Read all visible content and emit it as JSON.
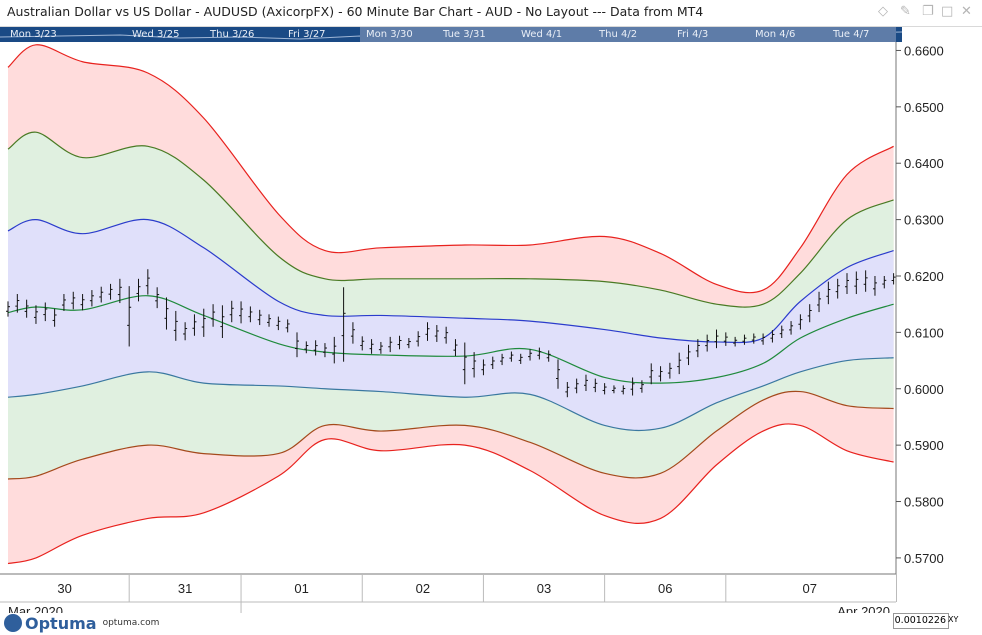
{
  "window": {
    "title": "Australian Dollar vs US Dollar - AUDUSD (AxicorpFX) - 60 Minute Bar Chart - AUD - No Layout --- Data from MT4",
    "icons": [
      "diamond-icon",
      "pin-icon",
      "restore-icon",
      "maximize-icon",
      "close-icon"
    ]
  },
  "navigator": {
    "labels": [
      "Mon 3/23",
      "Wed 3/25",
      "Thu 3/26",
      "Fri 3/27",
      "Mon 3/30",
      "Tue 3/31",
      "Wed 4/1",
      "Thu 4/2",
      "Fri 4/3",
      "Mon 4/6",
      "Tue 4/7"
    ]
  },
  "footer": {
    "logo_text": "Optuma",
    "logo_url": "optuma.com",
    "cursor_value": "0.0010226",
    "xy_label": "XY"
  },
  "colors": {
    "background": "#ffffff",
    "bar": "#111111",
    "outer_band_fill": "#ffdcdc",
    "middle_band_fill": "#e0f0e0",
    "inner_band_fill": "#e0e0fa",
    "red_line": "#e8221e",
    "green_line": "#4a7a24",
    "blue_line": "#2b3ccc",
    "mid_line": "#1f8a3c",
    "inner_lower_line": "#3a78a0",
    "mid_lower_line": "#a44a1c",
    "navigator_bg": "#1a4a85",
    "navigator_selection": "#5e7ca8"
  },
  "chart_data": {
    "type": "bar",
    "instrument": "AUDUSD",
    "timeframe": "60 Minute",
    "y_axis": {
      "range": [
        0.5675,
        0.6615
      ],
      "ticks": [
        "0.6600",
        "0.6500",
        "0.6400",
        "0.6300",
        "0.6200",
        "0.6100",
        "0.6000",
        "0.5900",
        "0.5800",
        "0.5700"
      ],
      "side": "right"
    },
    "x_axis": {
      "day_labels": [
        "30",
        "31",
        "01",
        "02",
        "03",
        "06",
        "07"
      ],
      "month_labels": [
        "Mar 2020",
        "Apr 2020"
      ],
      "hour_range": [
        0,
        180
      ]
    },
    "day_boundaries_hours": [
      0,
      26,
      50,
      76,
      102,
      128,
      154
    ],
    "ohlc_bars": [
      [
        0,
        0.6155,
        0.6128
      ],
      [
        2,
        0.6168,
        0.6135
      ],
      [
        4,
        0.6158,
        0.6126
      ],
      [
        6,
        0.6148,
        0.6115
      ],
      [
        8,
        0.6153,
        0.612
      ],
      [
        10,
        0.6142,
        0.611
      ],
      [
        12,
        0.6168,
        0.6138
      ],
      [
        14,
        0.6172,
        0.6141
      ],
      [
        16,
        0.6168,
        0.6139
      ],
      [
        18,
        0.6175,
        0.6146
      ],
      [
        20,
        0.6181,
        0.6153
      ],
      [
        22,
        0.6186,
        0.6158
      ],
      [
        24,
        0.6195,
        0.6152
      ],
      [
        26,
        0.6182,
        0.6075
      ],
      [
        28,
        0.6195,
        0.6155
      ],
      [
        30,
        0.6212,
        0.6167
      ],
      [
        32,
        0.618,
        0.6143
      ],
      [
        34,
        0.6162,
        0.6105
      ],
      [
        36,
        0.6138,
        0.6085
      ],
      [
        38,
        0.6118,
        0.6086
      ],
      [
        40,
        0.6132,
        0.6094
      ],
      [
        42,
        0.6142,
        0.6092
      ],
      [
        44,
        0.615,
        0.611
      ],
      [
        46,
        0.6148,
        0.609
      ],
      [
        48,
        0.6156,
        0.6118
      ],
      [
        50,
        0.6155,
        0.6116
      ],
      [
        52,
        0.6146,
        0.6118
      ],
      [
        54,
        0.614,
        0.6113
      ],
      [
        56,
        0.6132,
        0.611
      ],
      [
        58,
        0.6128,
        0.6104
      ],
      [
        60,
        0.6123,
        0.61
      ],
      [
        62,
        0.61,
        0.6056
      ],
      [
        64,
        0.6084,
        0.6063
      ],
      [
        66,
        0.6086,
        0.6059
      ],
      [
        68,
        0.6081,
        0.6056
      ],
      [
        70,
        0.6092,
        0.6045
      ],
      [
        72,
        0.618,
        0.6048
      ],
      [
        74,
        0.6118,
        0.608
      ],
      [
        76,
        0.6093,
        0.6068
      ],
      [
        78,
        0.6088,
        0.6062
      ],
      [
        80,
        0.6083,
        0.6062
      ],
      [
        82,
        0.6092,
        0.6065
      ],
      [
        84,
        0.6094,
        0.607
      ],
      [
        86,
        0.609,
        0.6072
      ],
      [
        88,
        0.6102,
        0.6075
      ],
      [
        90,
        0.6118,
        0.6085
      ],
      [
        92,
        0.6113,
        0.6083
      ],
      [
        94,
        0.611,
        0.608
      ],
      [
        96,
        0.6088,
        0.6058
      ],
      [
        98,
        0.6082,
        0.6008
      ],
      [
        100,
        0.6065,
        0.602
      ],
      [
        102,
        0.6052,
        0.6024
      ],
      [
        104,
        0.6057,
        0.6035
      ],
      [
        106,
        0.6062,
        0.6042
      ],
      [
        108,
        0.6066,
        0.6048
      ],
      [
        110,
        0.6062,
        0.6044
      ],
      [
        112,
        0.607,
        0.605
      ],
      [
        114,
        0.6073,
        0.6052
      ],
      [
        116,
        0.6068,
        0.6048
      ],
      [
        118,
        0.6052,
        0.6
      ],
      [
        120,
        0.6012,
        0.5985
      ],
      [
        122,
        0.6018,
        0.5992
      ],
      [
        124,
        0.6025,
        0.5996
      ],
      [
        126,
        0.6018,
        0.5994
      ],
      [
        128,
        0.601,
        0.599
      ],
      [
        130,
        0.6006,
        0.5992
      ],
      [
        132,
        0.6006,
        0.599
      ],
      [
        134,
        0.602,
        0.5988
      ],
      [
        136,
        0.6015,
        0.5993
      ],
      [
        138,
        0.6045,
        0.6008
      ],
      [
        140,
        0.604,
        0.6013
      ],
      [
        142,
        0.6046,
        0.6018
      ],
      [
        144,
        0.6064,
        0.6026
      ],
      [
        146,
        0.6078,
        0.6042
      ],
      [
        148,
        0.6088,
        0.6056
      ],
      [
        150,
        0.6096,
        0.6066
      ],
      [
        152,
        0.6105,
        0.6072
      ],
      [
        154,
        0.61,
        0.6076
      ],
      [
        156,
        0.6092,
        0.6075
      ],
      [
        158,
        0.6096,
        0.6078
      ],
      [
        160,
        0.6098,
        0.608
      ],
      [
        162,
        0.6098,
        0.6078
      ],
      [
        164,
        0.6104,
        0.6082
      ],
      [
        166,
        0.6112,
        0.609
      ],
      [
        168,
        0.612,
        0.6096
      ],
      [
        170,
        0.6132,
        0.6105
      ],
      [
        172,
        0.615,
        0.6118
      ],
      [
        174,
        0.6172,
        0.6136
      ],
      [
        176,
        0.619,
        0.615
      ],
      [
        178,
        0.6195,
        0.616
      ],
      [
        180,
        0.6205,
        0.6168
      ],
      [
        182,
        0.6208,
        0.6168
      ],
      [
        184,
        0.621,
        0.6172
      ],
      [
        186,
        0.62,
        0.6165
      ],
      [
        188,
        0.62,
        0.6178
      ],
      [
        190,
        0.6205,
        0.6185
      ]
    ],
    "bands": {
      "x_hours": [
        0,
        6,
        16,
        30,
        42,
        58,
        68,
        80,
        98,
        112,
        128,
        140,
        152,
        162,
        170,
        180,
        190
      ],
      "red_upper": [
        0.657,
        0.661,
        0.658,
        0.656,
        0.648,
        0.631,
        0.6245,
        0.625,
        0.6255,
        0.6255,
        0.627,
        0.624,
        0.6185,
        0.6175,
        0.625,
        0.638,
        0.643
      ],
      "green_upper": [
        0.6425,
        0.6455,
        0.641,
        0.643,
        0.637,
        0.6235,
        0.6195,
        0.6195,
        0.6195,
        0.6195,
        0.619,
        0.6175,
        0.615,
        0.615,
        0.6205,
        0.63,
        0.6335
      ],
      "blue_upper": [
        0.628,
        0.63,
        0.6275,
        0.63,
        0.625,
        0.6155,
        0.613,
        0.613,
        0.6125,
        0.612,
        0.6105,
        0.609,
        0.6083,
        0.609,
        0.6155,
        0.6215,
        0.6245
      ],
      "mid_line": [
        0.6135,
        0.6145,
        0.614,
        0.6165,
        0.613,
        0.608,
        0.6065,
        0.606,
        0.6058,
        0.607,
        0.602,
        0.601,
        0.602,
        0.6045,
        0.609,
        0.6125,
        0.615
      ],
      "inner_lower": [
        0.5985,
        0.599,
        0.6005,
        0.603,
        0.601,
        0.6005,
        0.6,
        0.5995,
        0.5985,
        0.599,
        0.5935,
        0.593,
        0.5975,
        0.6005,
        0.603,
        0.605,
        0.6055
      ],
      "mid_lower": [
        0.584,
        0.5845,
        0.5875,
        0.59,
        0.5885,
        0.5885,
        0.5935,
        0.5925,
        0.5935,
        0.5905,
        0.585,
        0.585,
        0.5925,
        0.598,
        0.5995,
        0.597,
        0.5965
      ],
      "red_lower": [
        0.569,
        0.57,
        0.574,
        0.577,
        0.578,
        0.5845,
        0.591,
        0.589,
        0.59,
        0.5855,
        0.5775,
        0.577,
        0.5865,
        0.5925,
        0.5935,
        0.589,
        0.587
      ]
    },
    "grid": false,
    "legend": "none"
  }
}
